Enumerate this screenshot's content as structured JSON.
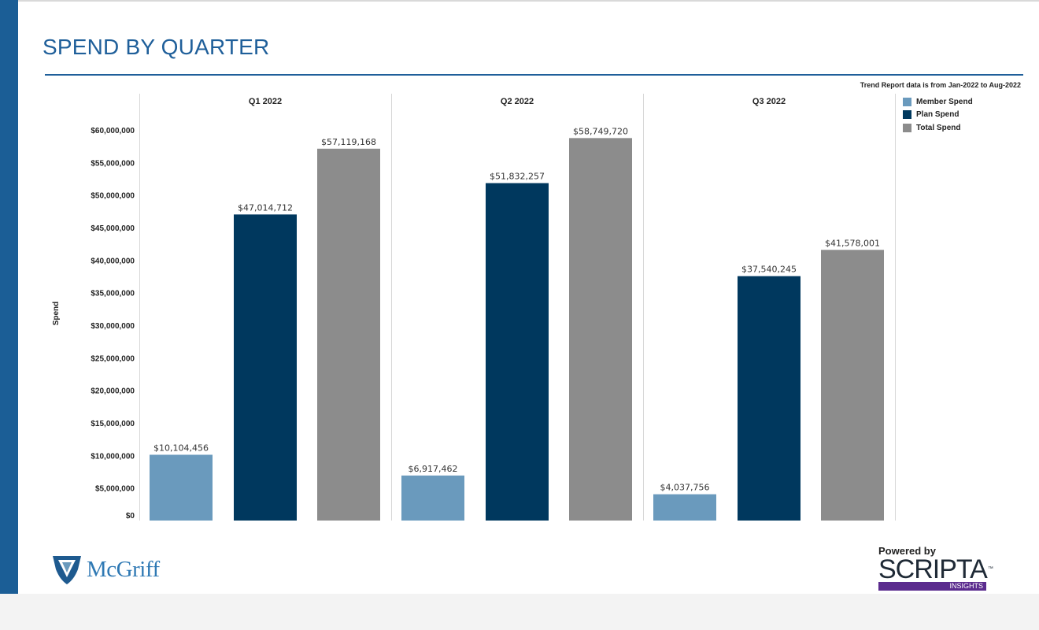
{
  "page": {
    "title": "SPEND BY QUARTER",
    "note": "Trend Report data is from Jan-2022 to Aug-2022"
  },
  "logos": {
    "left": {
      "name": "McGriff"
    },
    "right": {
      "powered_by": "Powered by",
      "brand": "SCRIPTA",
      "tm": "™",
      "subtitle": "INSIGHTS"
    }
  },
  "colors": {
    "member": "#6a9abd",
    "plan": "#00385e",
    "total": "#8c8c8c",
    "accent": "#1f5f9a"
  },
  "chart_data": {
    "type": "bar",
    "title": "",
    "xlabel": "",
    "ylabel": "Spend",
    "ylim": [
      0,
      60000000
    ],
    "ytick_values": [
      0,
      5000000,
      10000000,
      15000000,
      20000000,
      25000000,
      30000000,
      35000000,
      40000000,
      45000000,
      50000000,
      55000000,
      60000000
    ],
    "ytick_labels": [
      "$0",
      "$5,000,000",
      "$10,000,000",
      "$15,000,000",
      "$20,000,000",
      "$25,000,000",
      "$30,000,000",
      "$35,000,000",
      "$40,000,000",
      "$45,000,000",
      "$50,000,000",
      "$55,000,000",
      "$60,000,000"
    ],
    "categories": [
      "Q1 2022",
      "Q2 2022",
      "Q3 2022"
    ],
    "grid": false,
    "legend_position": "right",
    "series": [
      {
        "name": "Member Spend",
        "color": "#6a9abd",
        "values": [
          10104456,
          6917462,
          4037756
        ],
        "labels": [
          "$10,104,456",
          "$6,917,462",
          "$4,037,756"
        ]
      },
      {
        "name": "Plan Spend",
        "color": "#00385e",
        "values": [
          47014712,
          51832257,
          37540245
        ],
        "labels": [
          "$47,014,712",
          "$51,832,257",
          "$37,540,245"
        ]
      },
      {
        "name": "Total Spend",
        "color": "#8c8c8c",
        "values": [
          57119168,
          58749720,
          41578001
        ],
        "labels": [
          "$57,119,168",
          "$58,749,720",
          "$41,578,001"
        ]
      }
    ]
  }
}
